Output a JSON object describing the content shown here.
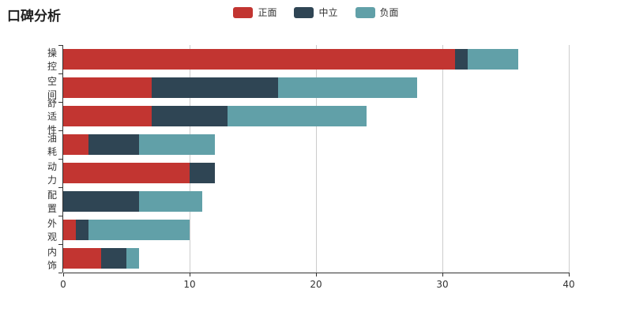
{
  "title": "口碑分析",
  "legend": [
    {
      "label": "正面",
      "color": "#c23531"
    },
    {
      "label": "中立",
      "color": "#2f4554"
    },
    {
      "label": "负面",
      "color": "#61a0a8"
    }
  ],
  "chart_data": {
    "type": "bar",
    "orientation": "horizontal",
    "stacked": true,
    "title": "口碑分析",
    "categories": [
      "操控",
      "空间",
      "舒适性",
      "油耗",
      "动力",
      "配置",
      "外观",
      "内饰"
    ],
    "series": [
      {
        "name": "正面",
        "color": "#c23531",
        "values": [
          31,
          7,
          7,
          2,
          10,
          0,
          1,
          3
        ]
      },
      {
        "name": "中立",
        "color": "#2f4554",
        "values": [
          1,
          10,
          6,
          4,
          2,
          6,
          1,
          2
        ]
      },
      {
        "name": "负面",
        "color": "#61a0a8",
        "values": [
          4,
          11,
          11,
          6,
          0,
          5,
          8,
          1
        ]
      }
    ],
    "totals": [
      36,
      28,
      24,
      12,
      12,
      11,
      10,
      6
    ],
    "xlim": [
      0,
      40
    ],
    "x_ticks": [
      0,
      10,
      20,
      30,
      40
    ],
    "xlabel": "",
    "ylabel": "",
    "grid": "vertical-splitlines",
    "legend_position": "top-center"
  },
  "style": {
    "grid_color": "#ccc",
    "axis_color": "#333",
    "label_color": "#333",
    "background": "#ffffff"
  }
}
